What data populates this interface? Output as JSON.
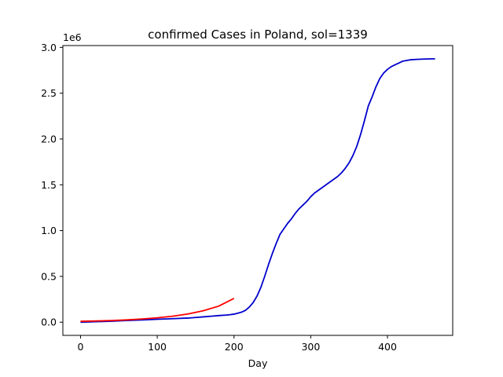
{
  "chart_data": {
    "type": "line",
    "title": "confirmed Cases in Poland, sol=1339",
    "xlabel": "Day",
    "ylabel": "",
    "y_offset_text": "1e6",
    "xlim": [
      -23,
      485
    ],
    "ylim": [
      -0.144,
      3.02
    ],
    "x_ticks": [
      0,
      100,
      200,
      300,
      400
    ],
    "x_tick_labels": [
      "0",
      "100",
      "200",
      "300",
      "400"
    ],
    "y_ticks": [
      0.0,
      0.5,
      1.0,
      1.5,
      2.0,
      2.5,
      3.0
    ],
    "y_tick_labels": [
      "0.0",
      "0.5",
      "1.0",
      "1.5",
      "2.0",
      "2.5",
      "3.0"
    ],
    "grid": false,
    "legend": "none",
    "series": [
      {
        "color": "#0000cc",
        "x": [
          0,
          20,
          40,
          60,
          80,
          100,
          120,
          140,
          160,
          170,
          180,
          190,
          195,
          200,
          205,
          210,
          215,
          220,
          225,
          230,
          235,
          240,
          245,
          250,
          255,
          260,
          265,
          270,
          275,
          280,
          285,
          290,
          295,
          300,
          305,
          310,
          315,
          320,
          325,
          330,
          335,
          340,
          345,
          350,
          355,
          360,
          365,
          370,
          375,
          380,
          385,
          390,
          395,
          400,
          405,
          410,
          415,
          420,
          430,
          440,
          450,
          462
        ],
        "y": [
          0.0,
          0.005,
          0.011,
          0.018,
          0.025,
          0.032,
          0.038,
          0.045,
          0.058,
          0.065,
          0.072,
          0.078,
          0.082,
          0.088,
          0.098,
          0.11,
          0.13,
          0.165,
          0.215,
          0.285,
          0.38,
          0.5,
          0.63,
          0.75,
          0.86,
          0.96,
          1.02,
          1.08,
          1.13,
          1.19,
          1.24,
          1.28,
          1.32,
          1.37,
          1.41,
          1.44,
          1.47,
          1.5,
          1.53,
          1.56,
          1.59,
          1.63,
          1.68,
          1.74,
          1.82,
          1.92,
          2.05,
          2.2,
          2.36,
          2.46,
          2.57,
          2.66,
          2.72,
          2.76,
          2.79,
          2.81,
          2.83,
          2.85,
          2.865,
          2.87,
          2.873,
          2.875
        ]
      },
      {
        "color": "#ff0000",
        "x": [
          0,
          20,
          40,
          60,
          80,
          100,
          120,
          140,
          160,
          180,
          200
        ],
        "y": [
          0.01,
          0.013,
          0.018,
          0.025,
          0.035,
          0.048,
          0.065,
          0.09,
          0.125,
          0.175,
          0.26
        ]
      }
    ]
  }
}
